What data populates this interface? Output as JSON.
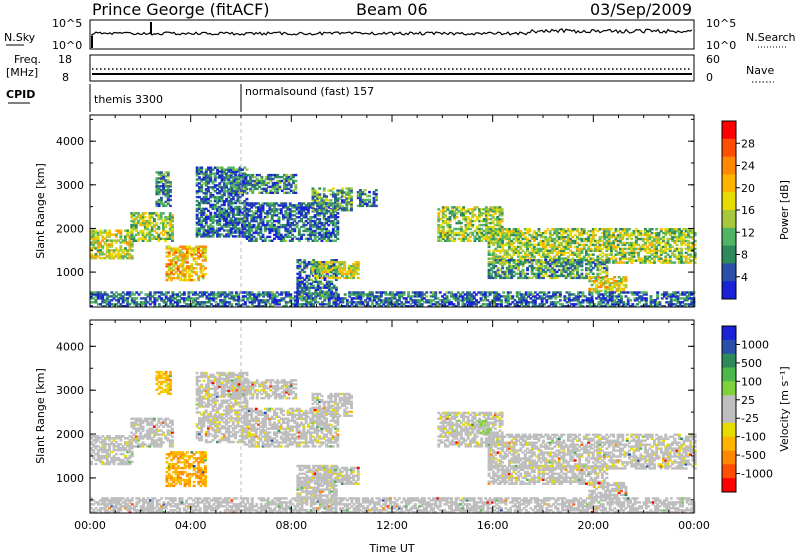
{
  "header": {
    "station": "Prince George (fitACF)",
    "beam": "Beam 06",
    "date": "03/Sep/2009"
  },
  "top_panels": {
    "nsky_label": "N.Sky",
    "nsky_ticks": [
      "10^5",
      "10^0"
    ],
    "nsearch_ticks": [
      "10^5",
      "10^0"
    ],
    "nsearch_label": "N.Search",
    "freq_label": "Freq.",
    "freq_unit": "[MHz]",
    "freq_ticks": [
      "18",
      "8"
    ],
    "nave_ticks": [
      "60",
      "0"
    ],
    "nave_label": "Nave",
    "cpid_label": "CPID",
    "cpid_segments": [
      {
        "label": "themis 3300",
        "start_hour": 0
      },
      {
        "label": "normalsound (fast) 157",
        "start_hour": 6
      }
    ]
  },
  "chart_data": [
    {
      "type": "heatmap",
      "title": "",
      "xlabel": "Time UT",
      "ylabel": "Slant Range [km]",
      "x_range_hours": [
        0,
        24
      ],
      "xticks": [
        "00:00",
        "04:00",
        "08:00",
        "12:00",
        "16:00",
        "20:00",
        "00:00"
      ],
      "ylim": [
        200,
        4600
      ],
      "yticks": [
        "1000",
        "2000",
        "3000",
        "4000"
      ],
      "colorbar": {
        "label": "Power [dB]",
        "ticks": [
          "28",
          "24",
          "20",
          "16",
          "12",
          "8",
          "4"
        ],
        "colors": [
          "#ff0000",
          "#ff4e00",
          "#ff8800",
          "#ffb400",
          "#e6dc00",
          "#a6c83a",
          "#50b464",
          "#2e8a5a",
          "#2a4fa8",
          "#1a22d8"
        ]
      },
      "blobs": [
        {
          "t0": 0.0,
          "t1": 1.7,
          "r0": 1300,
          "r1": 1950,
          "v": 16
        },
        {
          "t0": 1.6,
          "t1": 3.3,
          "r0": 1700,
          "r1": 2350,
          "v": 14
        },
        {
          "t0": 2.6,
          "t1": 3.2,
          "r0": 2500,
          "r1": 3300,
          "v": 8
        },
        {
          "t0": 3.0,
          "t1": 4.6,
          "r0": 800,
          "r1": 1600,
          "v": 20
        },
        {
          "t0": 4.2,
          "t1": 6.2,
          "r0": 1800,
          "r1": 3400,
          "v": 6
        },
        {
          "t0": 5.6,
          "t1": 8.2,
          "r0": 2800,
          "r1": 3250,
          "v": 8
        },
        {
          "t0": 6.1,
          "t1": 9.8,
          "r0": 1700,
          "r1": 2600,
          "v": 6
        },
        {
          "t0": 8.2,
          "t1": 9.8,
          "r0": 400,
          "r1": 1300,
          "v": 6
        },
        {
          "t0": 8.8,
          "t1": 10.6,
          "r0": 850,
          "r1": 1250,
          "v": 16
        },
        {
          "t0": 8.8,
          "t1": 10.4,
          "r0": 2400,
          "r1": 2900,
          "v": 10
        },
        {
          "t0": 10.6,
          "t1": 11.4,
          "r0": 2500,
          "r1": 2900,
          "v": 8
        },
        {
          "t0": 13.8,
          "t1": 16.4,
          "r0": 1700,
          "r1": 2500,
          "v": 14
        },
        {
          "t0": 15.8,
          "t1": 24.0,
          "r0": 1200,
          "r1": 2000,
          "v": 14
        },
        {
          "t0": 15.8,
          "t1": 20.5,
          "r0": 850,
          "r1": 1300,
          "v": 10
        },
        {
          "t0": 19.8,
          "t1": 21.3,
          "r0": 550,
          "r1": 900,
          "v": 18
        },
        {
          "t0": 0.0,
          "t1": 24.0,
          "r0": 200,
          "r1": 560,
          "v": 6
        }
      ]
    },
    {
      "type": "heatmap",
      "title": "",
      "xlabel": "Time UT",
      "ylabel": "Slant Range [km]",
      "x_range_hours": [
        0,
        24
      ],
      "xticks": [
        "00:00",
        "04:00",
        "08:00",
        "12:00",
        "16:00",
        "20:00",
        "00:00"
      ],
      "ylim": [
        200,
        4600
      ],
      "yticks": [
        "1000",
        "2000",
        "3000",
        "4000"
      ],
      "colorbar": {
        "label": "Velocity [m s⁻¹]",
        "ticks": [
          "1000",
          "500",
          "100",
          "25",
          "-25",
          "-100",
          "-500",
          "-1000"
        ],
        "colors": [
          "#1a22d8",
          "#2a4fa8",
          "#2e8a5a",
          "#4cb84c",
          "#7ed23c",
          "#bebebe",
          "#bebebe",
          "#e6dc00",
          "#ffb400",
          "#ff8800",
          "#ff4e00",
          "#ff0000"
        ]
      },
      "blobs": [
        {
          "t0": 0.0,
          "t1": 1.7,
          "r0": 1300,
          "r1": 1950,
          "v": 0
        },
        {
          "t0": 1.6,
          "t1": 3.3,
          "r0": 1700,
          "r1": 2350,
          "v": 0
        },
        {
          "t0": 2.6,
          "t1": 3.2,
          "r0": 2900,
          "r1": 3400,
          "v": -150
        },
        {
          "t0": 3.0,
          "t1": 4.6,
          "r0": 800,
          "r1": 1600,
          "v": -200
        },
        {
          "t0": 4.2,
          "t1": 6.2,
          "r0": 1800,
          "r1": 3400,
          "v": 0
        },
        {
          "t0": 5.6,
          "t1": 8.2,
          "r0": 2800,
          "r1": 3250,
          "v": 0
        },
        {
          "t0": 6.1,
          "t1": 9.8,
          "r0": 1700,
          "r1": 2600,
          "v": 0
        },
        {
          "t0": 8.2,
          "t1": 9.8,
          "r0": 400,
          "r1": 1300,
          "v": 0
        },
        {
          "t0": 8.8,
          "t1": 10.6,
          "r0": 850,
          "r1": 1250,
          "v": 0
        },
        {
          "t0": 8.8,
          "t1": 10.4,
          "r0": 2400,
          "r1": 2900,
          "v": 0
        },
        {
          "t0": 13.8,
          "t1": 16.4,
          "r0": 1700,
          "r1": 2500,
          "v": 0
        },
        {
          "t0": 15.4,
          "t1": 15.9,
          "r0": 2000,
          "r1": 2300,
          "v": 120
        },
        {
          "t0": 15.8,
          "t1": 24.0,
          "r0": 1200,
          "r1": 2000,
          "v": 0
        },
        {
          "t0": 15.8,
          "t1": 20.5,
          "r0": 850,
          "r1": 1300,
          "v": 0
        },
        {
          "t0": 19.8,
          "t1": 21.3,
          "r0": 550,
          "r1": 900,
          "v": 0
        },
        {
          "t0": 0.0,
          "t1": 24.0,
          "r0": 200,
          "r1": 520,
          "v": 40
        }
      ]
    }
  ]
}
